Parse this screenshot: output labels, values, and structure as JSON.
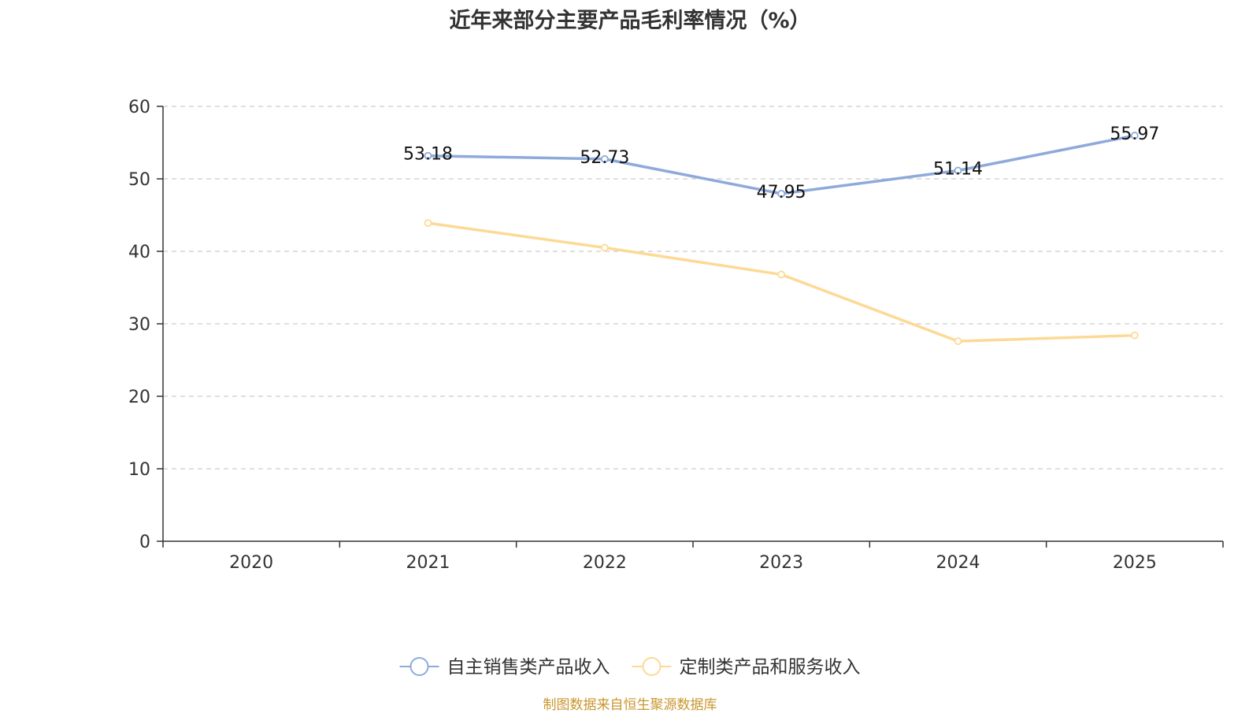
{
  "chart_data": {
    "type": "line",
    "title": "近年来部分主要产品毛利率情况（%）",
    "categories": [
      "2020",
      "2021",
      "2022",
      "2023",
      "2024",
      "2025"
    ],
    "ylim": [
      0,
      60
    ],
    "yticks": [
      0,
      10,
      20,
      30,
      40,
      50,
      60
    ],
    "grid": true,
    "legend_position": "bottom",
    "series": [
      {
        "name": "自主销售类产品收入",
        "color": "#8eaadb",
        "values": [
          null,
          53.18,
          52.73,
          47.95,
          51.14,
          55.97
        ],
        "labels": [
          "",
          "53.18",
          "52.73",
          "47.95",
          "51.14",
          "55.97"
        ]
      },
      {
        "name": "定制类产品和服务收入",
        "color": "#fdd996",
        "values": [
          null,
          43.9,
          40.5,
          36.8,
          27.6,
          28.4
        ]
      }
    ]
  },
  "footer": {
    "source": "制图数据来自恒生聚源数据库"
  },
  "colors": {
    "source_text": "#c9962e",
    "grid": "#cccccc",
    "axis": "#333333"
  }
}
